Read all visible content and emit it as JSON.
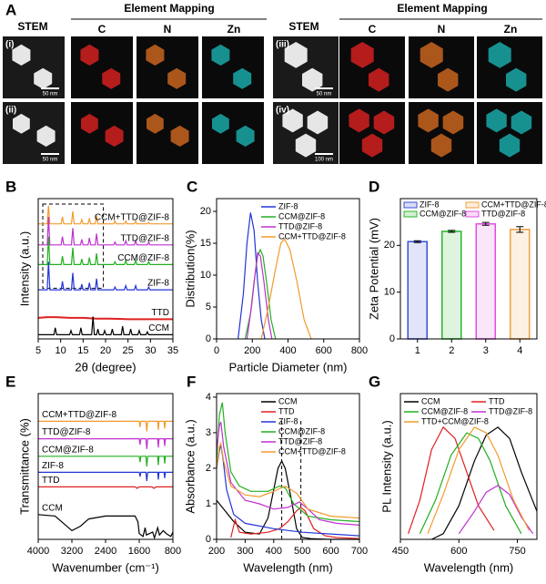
{
  "panel_a": {
    "label": "A",
    "headers": [
      "STEM",
      "Element Mapping",
      "C",
      "N",
      "Zn",
      "STEM",
      "Element Mapping",
      "C",
      "N",
      "Zn"
    ],
    "rows": [
      "(i)",
      "(ii)",
      "(iii)",
      "(iv)"
    ],
    "scale_bars": [
      "50 nm",
      "50 nm",
      "50 nm",
      "100 nm"
    ]
  },
  "chart_data": [
    {
      "type": "line",
      "label": "B",
      "xlabel": "2θ (degree)",
      "ylabel": "Intensity (a.u.)",
      "xlim": [
        5,
        35
      ],
      "xticks": [
        5,
        10,
        15,
        20,
        25,
        30,
        35
      ],
      "ylim": [
        0,
        100
      ],
      "legend": "inline-right",
      "x": [
        5,
        7.0,
        7.3,
        7.6,
        10.1,
        10.4,
        10.7,
        12.4,
        12.7,
        13.0,
        14.4,
        14.7,
        15.0,
        16.1,
        16.4,
        16.7,
        17.7,
        18.0,
        18.3,
        21.8,
        22.1,
        22.4,
        24.2,
        24.5,
        24.8,
        26.4,
        26.7,
        27.0,
        29.3,
        29.6,
        29.9,
        35
      ],
      "series": [
        {
          "name": "CCM+TTD@ZIF-8",
          "color": "#f29a2e",
          "values": [
            82,
            82,
            95,
            82,
            82,
            87,
            82,
            82,
            91,
            82,
            82,
            85,
            82,
            82,
            86,
            82,
            82,
            88,
            82,
            82,
            84,
            82,
            82,
            84,
            82,
            82,
            84,
            82,
            82,
            83,
            82,
            82
          ]
        },
        {
          "name": "TTD@ZIF-8",
          "color": "#c030d0",
          "values": [
            67,
            67,
            87,
            67,
            67,
            73,
            67,
            67,
            79,
            67,
            67,
            71,
            67,
            67,
            72,
            67,
            67,
            75,
            67,
            67,
            69,
            67,
            67,
            70,
            67,
            67,
            70,
            67,
            67,
            69,
            67,
            67
          ]
        },
        {
          "name": "CCM@ZIF-8",
          "color": "#20b020",
          "values": [
            53,
            53,
            73,
            53,
            53,
            59,
            53,
            53,
            65,
            53,
            53,
            57,
            53,
            53,
            58,
            53,
            53,
            61,
            53,
            53,
            55,
            53,
            53,
            56,
            53,
            53,
            56,
            53,
            53,
            55,
            53,
            53
          ]
        },
        {
          "name": "ZIF-8",
          "color": "#2234d8",
          "values": [
            35,
            35,
            55,
            35,
            35,
            41,
            35,
            35,
            47,
            35,
            35,
            39,
            35,
            35,
            40,
            35,
            35,
            43,
            35,
            35,
            37,
            35,
            35,
            38,
            35,
            35,
            38,
            35,
            35,
            37,
            35,
            35
          ]
        },
        {
          "name": "TTD",
          "color": "#e02020",
          "x": [
            5,
            7,
            9,
            12,
            15,
            18,
            21,
            25,
            30,
            35
          ],
          "values": [
            15,
            15.5,
            15.5,
            15,
            15,
            14.5,
            14.5,
            14,
            14,
            14
          ]
        },
        {
          "name": "CCM",
          "color": "#000000",
          "x": [
            5,
            8.5,
            8.8,
            9.1,
            12.0,
            12.3,
            12.6,
            14.2,
            14.5,
            14.8,
            16.9,
            17.2,
            17.5,
            18.0,
            18.3,
            18.6,
            19.5,
            19.8,
            20.1,
            21.2,
            21.5,
            21.8,
            23.5,
            23.8,
            24.1,
            25.3,
            25.6,
            25.9,
            27.2,
            27.5,
            27.8,
            29.0,
            29.3,
            29.6,
            35
          ],
          "values": [
            3,
            3,
            8,
            3,
            3,
            6,
            3,
            3,
            8,
            3,
            3,
            16,
            3,
            3,
            7,
            3,
            3,
            6,
            3,
            3,
            7,
            3,
            3,
            9,
            3,
            3,
            7,
            3,
            3,
            6,
            3,
            3,
            5,
            3,
            3
          ]
        }
      ]
    },
    {
      "type": "line",
      "label": "C",
      "xlabel": "Particle Diameter (nm)",
      "ylabel": "Distribution(%)",
      "xlim": [
        0,
        800
      ],
      "xticks": [
        0,
        200,
        400,
        600,
        800
      ],
      "ylim": [
        0,
        22
      ],
      "yticks": [
        0,
        5,
        10,
        15,
        20
      ],
      "legend": "upper right",
      "series": [
        {
          "name": "ZIF-8",
          "color": "#2234d8",
          "x": [
            120,
            150,
            170,
            190,
            210,
            230,
            250,
            270
          ],
          "values": [
            0,
            7,
            15,
            19.8,
            17,
            9,
            3,
            0
          ]
        },
        {
          "name": "CCM@ZIF-8",
          "color": "#20b020",
          "x": [
            160,
            190,
            210,
            230,
            245,
            260,
            280,
            305,
            330
          ],
          "values": [
            0,
            4,
            9,
            13,
            14,
            13,
            9,
            3,
            0
          ]
        },
        {
          "name": "TTD@ZIF-8",
          "color": "#c030d0",
          "x": [
            170,
            195,
            215,
            230,
            245,
            265,
            290,
            310
          ],
          "values": [
            0,
            5,
            10,
            13.5,
            13,
            9,
            3,
            0
          ]
        },
        {
          "name": "CCM+TTD@ZIF-8",
          "color": "#f29a2e",
          "x": [
            250,
            290,
            330,
            360,
            380,
            410,
            450,
            490,
            530
          ],
          "values": [
            0,
            5,
            11,
            15,
            15.7,
            14,
            9,
            3,
            0
          ]
        }
      ]
    },
    {
      "type": "bar",
      "label": "D",
      "ylabel": "Zeta Potential (mV)",
      "categories": [
        "1",
        "2",
        "3",
        "4"
      ],
      "values": [
        20.8,
        23.0,
        24.6,
        23.4
      ],
      "errors": [
        0.2,
        0.2,
        0.3,
        0.6
      ],
      "colors": [
        "#3a4fd6",
        "#2ab52a",
        "#e050e0",
        "#f0a040"
      ],
      "ylim": [
        0,
        30
      ],
      "yticks": [
        0,
        10,
        20
      ],
      "legend_columns": 2,
      "legend": [
        {
          "name": "ZIF-8",
          "color": "#3a4fd6"
        },
        {
          "name": "CCM+TTD@ZIF-8",
          "color": "#f0a040"
        },
        {
          "name": "CCM@ZIF-8",
          "color": "#2ab52a"
        },
        {
          "name": "TTD@ZIF-8",
          "color": "#e050e0"
        }
      ]
    },
    {
      "type": "line",
      "label": "E",
      "xlabel": "Wavenumber (cm⁻¹)",
      "ylabel": "Transmittance (%)",
      "xlim": [
        4000,
        800
      ],
      "xticks": [
        4000,
        3200,
        2400,
        1600,
        800
      ],
      "ylim": [
        0,
        100
      ],
      "legend": "inline-left",
      "x": [
        4000,
        1700,
        1600,
        1580,
        1560,
        1440,
        1420,
        1400,
        1160,
        1145,
        1130,
        1010,
        995,
        980,
        800
      ],
      "series": [
        {
          "name": "CCM+TTD@ZIF-8",
          "color": "#f29a2e",
          "values": [
            81,
            81,
            81,
            77,
            81,
            81,
            74,
            81,
            81,
            75,
            81,
            81,
            76,
            81,
            81
          ]
        },
        {
          "name": "TTD@ZIF-8",
          "color": "#c030d0",
          "values": [
            69,
            69,
            69,
            65,
            69,
            69,
            62,
            69,
            69,
            63,
            69,
            69,
            64,
            69,
            69
          ]
        },
        {
          "name": "CCM@ZIF-8",
          "color": "#20b020",
          "values": [
            57,
            57,
            57,
            53,
            57,
            57,
            50,
            57,
            57,
            51,
            57,
            57,
            52,
            57,
            57
          ]
        },
        {
          "name": "ZIF-8",
          "color": "#2234d8",
          "values": [
            46,
            46,
            46,
            43,
            46,
            46,
            40,
            46,
            46,
            41,
            46,
            46,
            42,
            46,
            46
          ]
        },
        {
          "name": "TTD",
          "color": "#e02020",
          "x": [
            4000,
            2000,
            1700,
            1650,
            1600,
            1300,
            1250,
            1200,
            800
          ],
          "values": [
            36,
            36,
            36,
            35,
            36,
            36,
            35,
            36,
            36
          ]
        },
        {
          "name": "CCM",
          "color": "#000000",
          "x": [
            4000,
            3600,
            3400,
            3200,
            3000,
            2800,
            2400,
            2000,
            1700,
            1630,
            1600,
            1510,
            1460,
            1430,
            1280,
            1240,
            1160,
            1120,
            1030,
            960,
            850,
            800
          ],
          "values": [
            17,
            16,
            11,
            6,
            9,
            14,
            16,
            16,
            16,
            12,
            4,
            2,
            8,
            3,
            5,
            1,
            8,
            3,
            6,
            4,
            2,
            5
          ]
        }
      ]
    },
    {
      "type": "line",
      "label": "F",
      "xlabel": "Wavelength (nm)",
      "ylabel": "Absorbance (a.u.)",
      "xlim": [
        200,
        700
      ],
      "xticks": [
        200,
        300,
        400,
        500,
        600,
        700
      ],
      "ylim": [
        0,
        4.1
      ],
      "yticks": [
        0,
        1,
        2,
        3,
        4
      ],
      "legend": "upper right",
      "ref_lines": [
        428,
        495
      ],
      "series": [
        {
          "name": "CCM",
          "color": "#000000",
          "x": [
            200,
            230,
            260,
            300,
            350,
            380,
            400,
            415,
            428,
            440,
            460,
            480,
            500,
            530,
            560,
            600,
            700
          ],
          "values": [
            1.1,
            0.8,
            0.5,
            0.2,
            0.15,
            0.6,
            1.4,
            2.0,
            2.2,
            2.0,
            1.2,
            0.3,
            0.05,
            0.02,
            0.01,
            0,
            0
          ]
        },
        {
          "name": "TTD",
          "color": "#e02020",
          "x": [
            250,
            265,
            280,
            320,
            380,
            420,
            450,
            480,
            495,
            510,
            540,
            580,
            620,
            700
          ],
          "values": [
            0.05,
            0.55,
            0.2,
            0.15,
            0.2,
            0.3,
            0.5,
            0.8,
            0.9,
            0.8,
            0.3,
            0.1,
            0.05,
            0.02
          ]
        },
        {
          "name": "ZIF-8",
          "color": "#2234d8",
          "x": [
            200,
            210,
            215,
            222,
            235,
            260,
            300,
            400,
            500,
            600,
            700
          ],
          "values": [
            2.0,
            2.5,
            2.65,
            2.3,
            1.4,
            0.7,
            0.45,
            0.3,
            0.2,
            0.15,
            0.1
          ]
        },
        {
          "name": "CCM@ZIF-8",
          "color": "#20b020",
          "x": [
            200,
            210,
            220,
            230,
            250,
            280,
            320,
            380,
            420,
            440,
            470,
            520,
            600,
            700
          ],
          "values": [
            2.2,
            3.5,
            3.85,
            3.0,
            1.9,
            1.5,
            1.35,
            1.35,
            1.5,
            1.45,
            1.0,
            0.65,
            0.55,
            0.5
          ]
        },
        {
          "name": "TTD@ZIF-8",
          "color": "#c030d0",
          "x": [
            200,
            210,
            215,
            225,
            250,
            300,
            350,
            400,
            450,
            490,
            520,
            560,
            620,
            700
          ],
          "values": [
            2.5,
            3.2,
            3.3,
            2.6,
            1.6,
            1.1,
            1.0,
            0.85,
            0.9,
            1.05,
            0.85,
            0.55,
            0.45,
            0.4
          ]
        },
        {
          "name": "CCM+TTD@ZIF-8",
          "color": "#f29a2e",
          "x": [
            200,
            210,
            215,
            225,
            250,
            300,
            350,
            400,
            440,
            480,
            520,
            600,
            700
          ],
          "values": [
            2.0,
            2.6,
            2.7,
            2.2,
            1.5,
            1.25,
            1.2,
            1.35,
            1.5,
            1.3,
            0.85,
            0.65,
            0.6
          ]
        }
      ]
    },
    {
      "type": "line",
      "label": "G",
      "xlabel": "Wavelength (nm)",
      "ylabel": "PL Intensity (a.u.)",
      "xlim": [
        450,
        800
      ],
      "xticks": [
        450,
        600,
        750
      ],
      "ylim": [
        0,
        1.3
      ],
      "legend": "upper left",
      "legend_columns": 2,
      "series": [
        {
          "name": "CCM",
          "color": "#000000",
          "x": [
            530,
            560,
            600,
            640,
            670,
            700,
            730,
            760,
            800
          ],
          "values": [
            0,
            0.05,
            0.3,
            0.7,
            0.93,
            1.0,
            0.9,
            0.6,
            0.25
          ]
        },
        {
          "name": "TTD",
          "color": "#e02020",
          "x": [
            470,
            500,
            530,
            560,
            590,
            620,
            650,
            690
          ],
          "values": [
            0.05,
            0.35,
            0.8,
            1.0,
            0.9,
            0.6,
            0.3,
            0.08
          ]
        },
        {
          "name": "CCM@ZIF-8",
          "color": "#20b020",
          "x": [
            500,
            540,
            580,
            620,
            650,
            680,
            720,
            760
          ],
          "values": [
            0.05,
            0.35,
            0.75,
            0.95,
            0.9,
            0.7,
            0.3,
            0.05
          ]
        },
        {
          "name": "TTD@ZIF-8",
          "color": "#c030d0",
          "x": [
            600,
            640,
            670,
            700,
            730,
            760,
            790
          ],
          "values": [
            0.05,
            0.25,
            0.42,
            0.48,
            0.4,
            0.2,
            0.05
          ]
        },
        {
          "name": "TTD+CCM@ZIF-8",
          "color": "#f29a2e",
          "x": [
            520,
            560,
            600,
            640,
            670,
            700,
            740,
            780
          ],
          "values": [
            0.05,
            0.4,
            0.8,
            1.0,
            0.95,
            0.75,
            0.35,
            0.08
          ]
        }
      ]
    }
  ]
}
